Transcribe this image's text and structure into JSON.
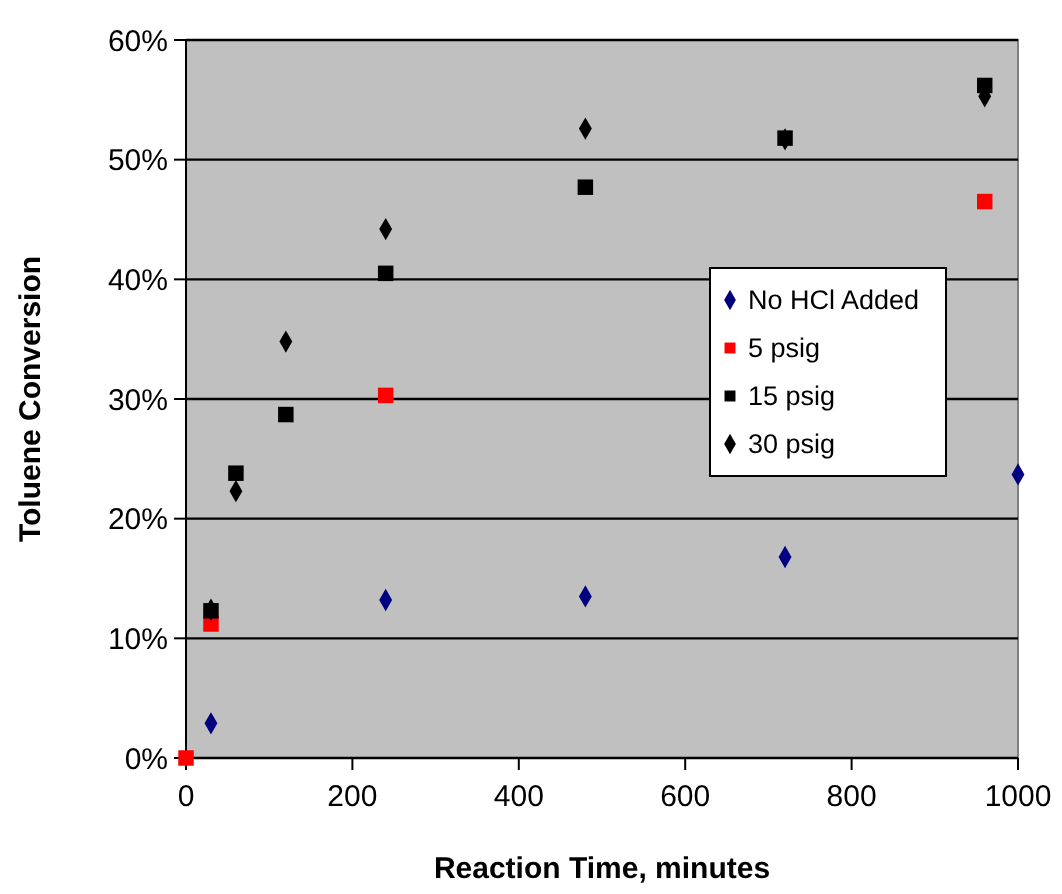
{
  "chart_data": {
    "type": "scatter",
    "xlabel": "Reaction Time, minutes",
    "ylabel": "Toluene Conversion",
    "xlim": [
      0,
      1000
    ],
    "xticks": [
      0,
      200,
      400,
      600,
      800,
      1000
    ],
    "ylim": [
      0,
      60
    ],
    "yticks": [
      {
        "value": 0,
        "label": "0%"
      },
      {
        "value": 10,
        "label": "10%"
      },
      {
        "value": 20,
        "label": "20%"
      },
      {
        "value": 30,
        "label": "30%"
      },
      {
        "value": 40,
        "label": "40%"
      },
      {
        "value": 50,
        "label": "50%"
      },
      {
        "value": 60,
        "label": "60%"
      }
    ],
    "grid": "y",
    "legend": "right",
    "series": [
      {
        "name": "No HCl Added",
        "color": "#000080",
        "marker": "diamond",
        "x": [
          30,
          240,
          480,
          720,
          1000
        ],
        "values": [
          2.9,
          13.2,
          13.5,
          16.8,
          23.7
        ]
      },
      {
        "name": "5 psig",
        "color": "#ff0000",
        "marker": "square",
        "x": [
          0,
          30,
          240,
          960
        ],
        "values": [
          0,
          11.2,
          30.3,
          46.5
        ]
      },
      {
        "name": "15 psig",
        "color": "#000000",
        "marker": "square",
        "x": [
          30,
          60,
          120,
          240,
          480,
          720,
          960
        ],
        "values": [
          12.3,
          23.8,
          28.7,
          40.5,
          47.7,
          51.8,
          56.2
        ]
      },
      {
        "name": "30 psig",
        "color": "#000000",
        "marker": "diamond",
        "x": [
          30,
          60,
          120,
          240,
          480,
          720,
          960
        ],
        "values": [
          12.4,
          22.3,
          34.8,
          44.2,
          52.6,
          51.7,
          55.3
        ]
      }
    ]
  }
}
